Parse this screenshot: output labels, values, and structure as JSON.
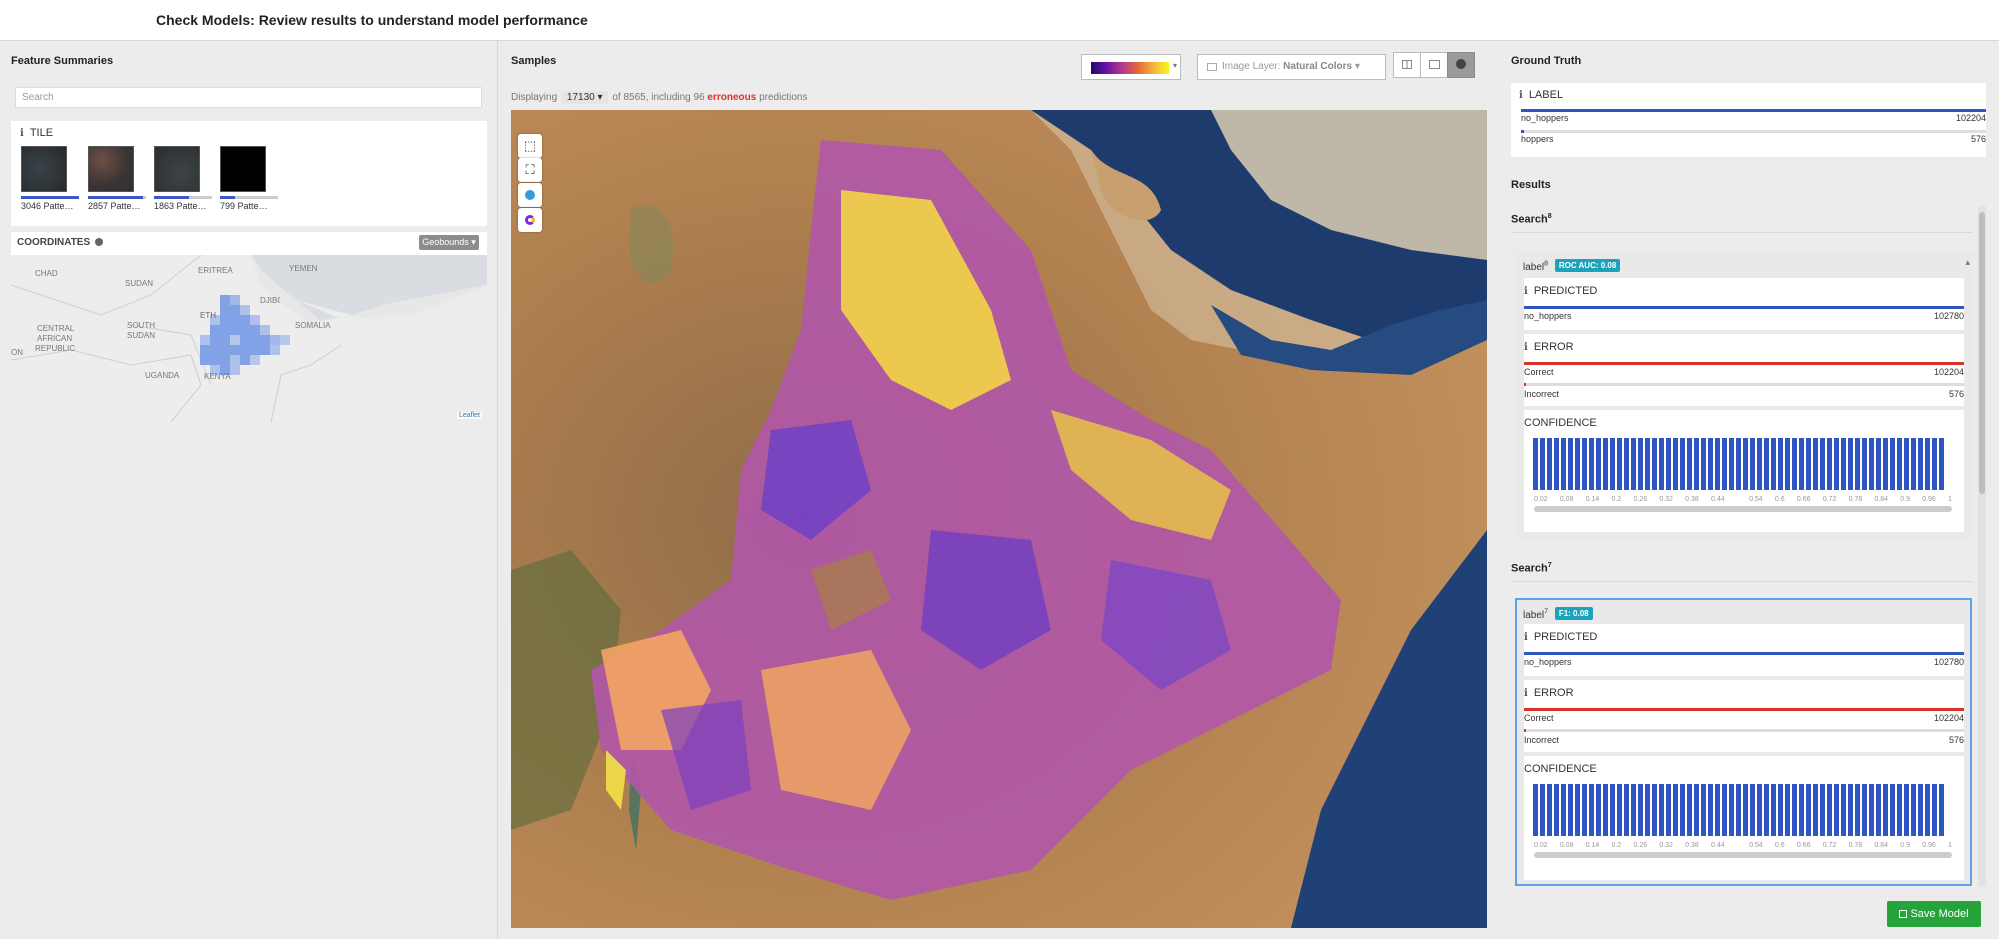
{
  "header": {
    "title": "Check Models: Review results to understand model performance"
  },
  "left": {
    "feature_summaries_title": "Feature Summaries",
    "search_placeholder": "Search",
    "tile": {
      "heading": "TILE",
      "items": [
        {
          "label": "3046 Patte…",
          "fraction": 1.0
        },
        {
          "label": "2857 Patte…",
          "fraction": 0.94
        },
        {
          "label": "1863 Patte…",
          "fraction": 0.61
        },
        {
          "label": "799 Patte…",
          "fraction": 0.26
        }
      ]
    },
    "coordinates": {
      "heading": "COORDINATES",
      "button": "Geobounds",
      "attribution": "Leaflet",
      "places": [
        "CHAD",
        "ERITREA",
        "YEMEN",
        "SUDAN",
        "DJIBOUTI",
        "CENTRAL",
        "AFRICAN",
        "REPUBLIC",
        "SOUTH",
        "SUDAN",
        "ETH",
        "SOMALIA",
        "ON",
        "UGANDA",
        "KENYA"
      ]
    }
  },
  "middle": {
    "samples_title": "Samples",
    "image_layer_prefix": "Image Layer:",
    "image_layer_value": "Natural Colors",
    "displaying_prefix": "Displaying",
    "displaying_count": "17130",
    "displaying_mid": "of 8565, including 96",
    "erroneous": "erroneous",
    "displaying_suffix": "predictions",
    "colors": {
      "accent_error": "#d9342b"
    }
  },
  "right": {
    "ground_truth_title": "Ground Truth",
    "label_heading": "LABEL",
    "gt_rows": [
      {
        "label": "no_hoppers",
        "value": "102204",
        "fraction": 1.0
      },
      {
        "label": "hoppers",
        "value": "576",
        "fraction": 0.006
      }
    ],
    "results_title": "Results",
    "searches": [
      {
        "title": "Search",
        "sup": "8",
        "label": "label",
        "label_sup": "8",
        "badge": "ROC AUC: 0.08",
        "predicted_heading": "PREDICTED",
        "predicted_label": "no_hoppers",
        "predicted_value": "102780",
        "error_heading": "ERROR",
        "correct_label": "Correct",
        "correct_value": "102204",
        "incorrect_label": "Incorrect",
        "incorrect_value": "576",
        "confidence_heading": "CONFIDENCE"
      },
      {
        "title": "Search",
        "sup": "7",
        "label": "label",
        "label_sup": "7",
        "badge": "F1: 0.08",
        "predicted_heading": "PREDICTED",
        "predicted_label": "no_hoppers",
        "predicted_value": "102780",
        "error_heading": "ERROR",
        "correct_label": "Correct",
        "correct_value": "102204",
        "incorrect_label": "Incorrect",
        "incorrect_value": "576",
        "confidence_heading": "CONFIDENCE"
      }
    ],
    "confidence_ticks": [
      "0.02",
      "0.08",
      "0.14",
      "0.2",
      "0.26",
      "0.32",
      "0.38",
      "0.44",
      "",
      "0.54",
      "0.6",
      "0.66",
      "0.72",
      "0.78",
      "0.84",
      "0.9",
      "0.96",
      "1"
    ],
    "save_label": "Save Model"
  }
}
